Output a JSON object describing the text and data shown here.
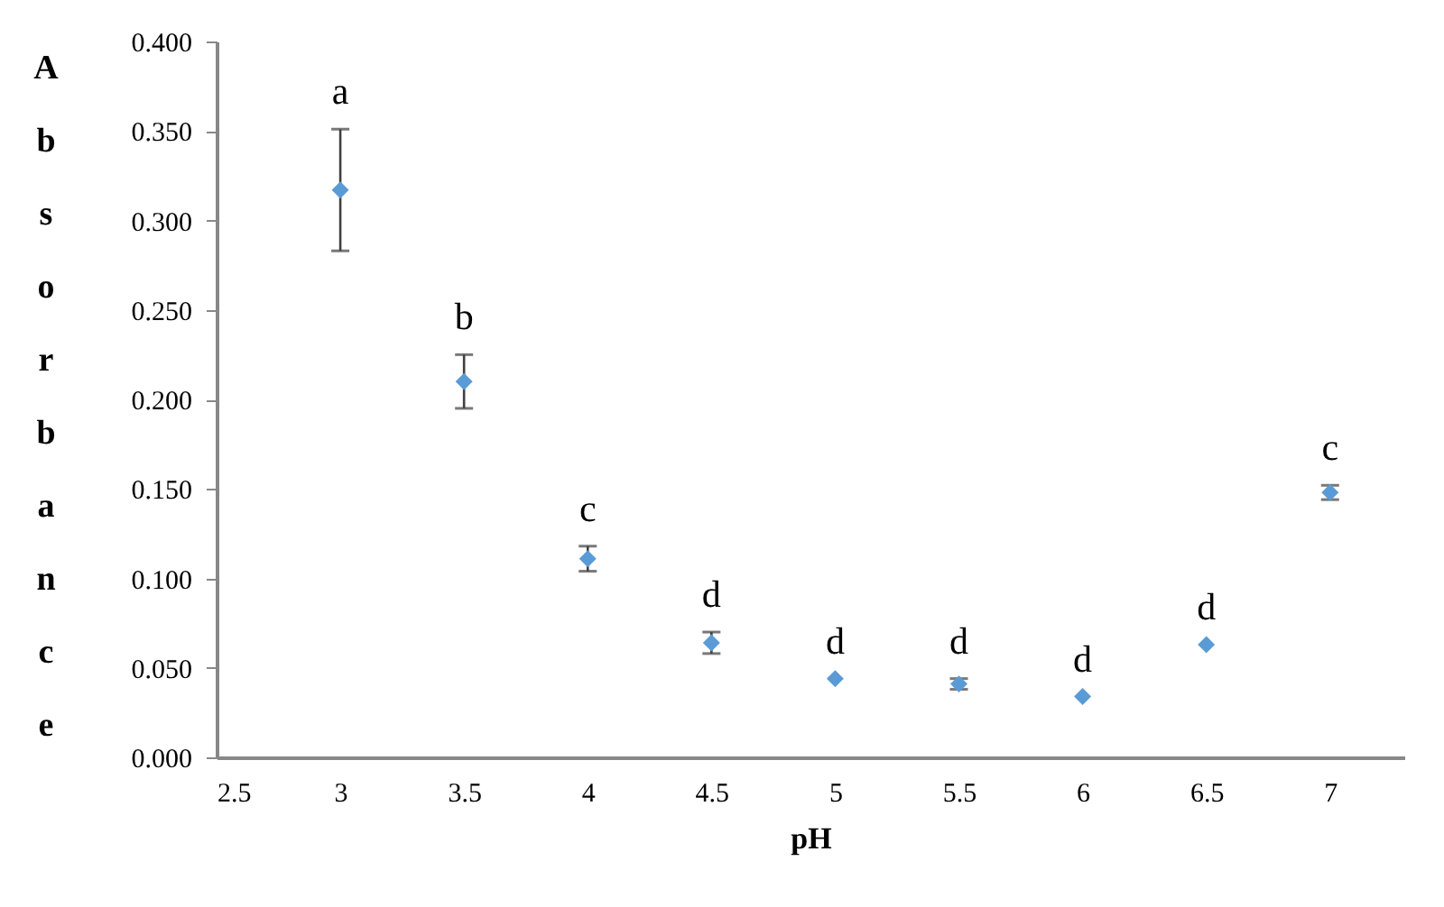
{
  "chart_data": {
    "type": "scatter",
    "xlabel": "pH",
    "ylabel": "Absorbance",
    "x": [
      3,
      3.5,
      4,
      4.5,
      5,
      5.5,
      6,
      6.5,
      7
    ],
    "series": [
      {
        "color": "#5b9bd5",
        "values": [
          0.317,
          0.21,
          0.111,
          0.064,
          0.044,
          0.041,
          0.034,
          0.063,
          0.148
        ],
        "errors": [
          0.034,
          0.015,
          0.007,
          0.006,
          null,
          0.003,
          null,
          null,
          0.004
        ]
      }
    ],
    "xlim": [
      2.5,
      7.3
    ],
    "xticks": [
      2.5,
      3,
      3.5,
      4,
      4.5,
      5,
      5.5,
      6,
      6.5,
      7
    ],
    "ylim": [
      0,
      0.4
    ],
    "yticks": [
      {
        "value": 0,
        "label": "0.000"
      },
      {
        "value": 0.05,
        "label": "0.050"
      },
      {
        "value": 0.1,
        "label": "0.100"
      },
      {
        "value": 0.15,
        "label": "0.150"
      },
      {
        "value": 0.2,
        "label": "0.200"
      },
      {
        "value": 0.25,
        "label": "0.250"
      },
      {
        "value": 0.3,
        "label": "0.300"
      },
      {
        "value": 0.35,
        "label": "0.350"
      },
      {
        "value": 0.4,
        "label": "0.400"
      }
    ],
    "marker": "diamond",
    "grid": false,
    "annotations": [
      {
        "text": "a",
        "x": 3,
        "y": 0.317
      },
      {
        "text": "b",
        "x": 3.5,
        "y": 0.21
      },
      {
        "text": "c",
        "x": 4,
        "y": 0.111
      },
      {
        "text": "d",
        "x": 4.5,
        "y": 0.064
      },
      {
        "text": "d",
        "x": 5,
        "y": 0.044
      },
      {
        "text": "d",
        "x": 5.5,
        "y": 0.041
      },
      {
        "text": "d",
        "x": 6,
        "y": 0.034
      },
      {
        "text": "d",
        "x": 6.5,
        "y": 0.063
      },
      {
        "text": "c",
        "x": 7,
        "y": 0.148
      }
    ]
  }
}
